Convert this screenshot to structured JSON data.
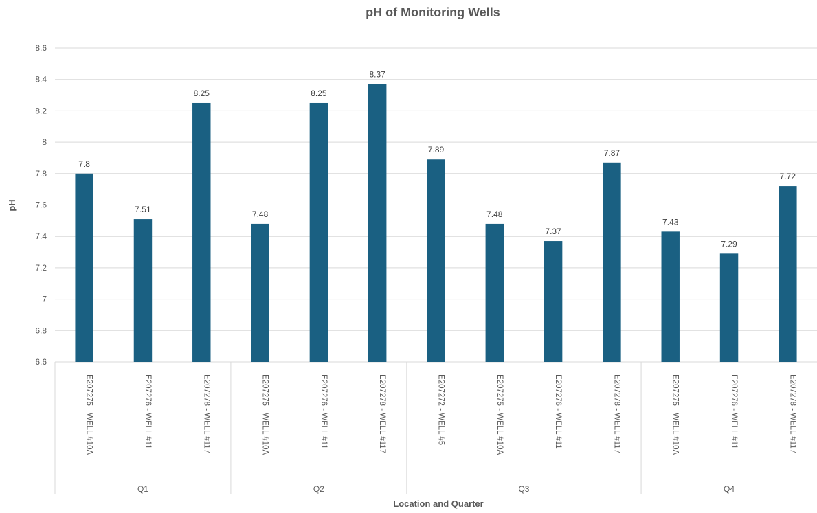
{
  "chart_data": {
    "type": "bar",
    "title": "pH of Monitoring Wells",
    "xlabel": "Location and Quarter",
    "ylabel": "pH",
    "ylim": [
      6.6,
      8.6
    ],
    "yticks": [
      "6.6",
      "6.8",
      "7",
      "7.2",
      "7.4",
      "7.6",
      "7.8",
      "8",
      "8.2",
      "8.4",
      "8.6"
    ],
    "grid": true,
    "bar_color": "#1a6082",
    "groups": [
      {
        "name": "Q1",
        "categories": [
          "E207275 - WELL #10A",
          "E207276 - WELL #11",
          "E207278 - WELL #117"
        ],
        "values": [
          7.8,
          7.51,
          8.25
        ]
      },
      {
        "name": "Q2",
        "categories": [
          "E207275 - WELL #10A",
          "E207276 - WELL #11",
          "E207278 - WELL #117"
        ],
        "values": [
          7.48,
          8.25,
          8.37
        ]
      },
      {
        "name": "Q3",
        "categories": [
          "E207272 - WELL #5",
          "E207275 - WELL #10A",
          "E207276 - WELL #11",
          "E207278 - WELL #117"
        ],
        "values": [
          7.89,
          7.48,
          7.37,
          7.87
        ]
      },
      {
        "name": "Q4",
        "categories": [
          "E207275 - WELL #10A",
          "E207276 - WELL #11",
          "E207278 - WELL #117"
        ],
        "values": [
          7.43,
          7.29,
          7.72
        ]
      }
    ]
  }
}
